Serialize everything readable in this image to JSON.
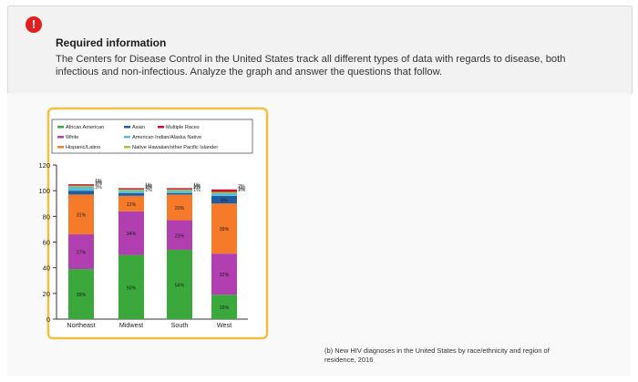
{
  "info": {
    "title": "Required information",
    "text": "The Centers for Disease Control in the United States track all different types of data with regards to disease, both infectious and non-infectious. Analyze the graph and answer the questions that follow."
  },
  "colors": {
    "African American": "#243b7a",
    "White": "#2c9ad0",
    "Hispanic/Latino": "#f2782a",
    "Asian": "#1a6b5a",
    "Multiple Races": "#c8102e",
    "American Indian/Alaska Native": "#6cc8d8",
    "Native Hawaiian/other Pacific Islander": "#9b3ca8",
    "frame": "#f0c040"
  },
  "caption": "(b) New HIV diagnoses in the United States by race/ethnicity and region of residence, 2016",
  "chart_data": {
    "type": "bar",
    "stacked": true,
    "categories": [
      "Northeast",
      "Midwest",
      "South",
      "West"
    ],
    "ylim": [
      0,
      120
    ],
    "yticks": [
      0,
      20,
      40,
      60,
      80,
      100,
      120
    ],
    "legend_position": "top",
    "legend": [
      "African American",
      "White",
      "Hispanic/Latino",
      "Asian",
      "American Indian/Alaska Native",
      "Native Hawaiian/other Pacific Islander",
      "Multiple Races"
    ],
    "series": [
      {
        "name": "African American",
        "values": [
          39,
          50,
          54,
          19
        ],
        "color": "#3aa83a"
      },
      {
        "name": "White",
        "values": [
          27,
          34,
          23,
          32
        ],
        "color": "#b23fb0"
      },
      {
        "name": "Hispanic/Latino",
        "values": [
          31,
          12,
          20,
          39
        ],
        "color": "#f57a2a"
      },
      {
        "name": "Asian",
        "values": [
          3,
          2,
          1,
          6
        ],
        "color": "#1f5da0"
      },
      {
        "name": "American Indian/Alaska Native",
        "values": [
          3,
          2,
          2,
          2
        ],
        "color": "#5bbcd6"
      },
      {
        "name": "Native Hawaiian/other Pacific Islander",
        "values": [
          1,
          1,
          1,
          1
        ],
        "color": "#9cc34a"
      },
      {
        "name": "Multiple Races",
        "values": [
          1,
          1,
          1,
          2
        ],
        "color": "#c8102e"
      }
    ],
    "value_labels": [
      [
        "39%",
        "27%",
        "31%",
        "3%",
        "3%",
        "1%",
        "1%"
      ],
      [
        "50%",
        "34%",
        "12%",
        "2%",
        "2%",
        "1%",
        "1%"
      ],
      [
        "54%",
        "23%",
        "20%",
        "1%",
        "2%",
        "1%",
        "1%"
      ],
      [
        "19%",
        "32%",
        "39%",
        "6%",
        "2%",
        "1%",
        "2%"
      ]
    ]
  }
}
